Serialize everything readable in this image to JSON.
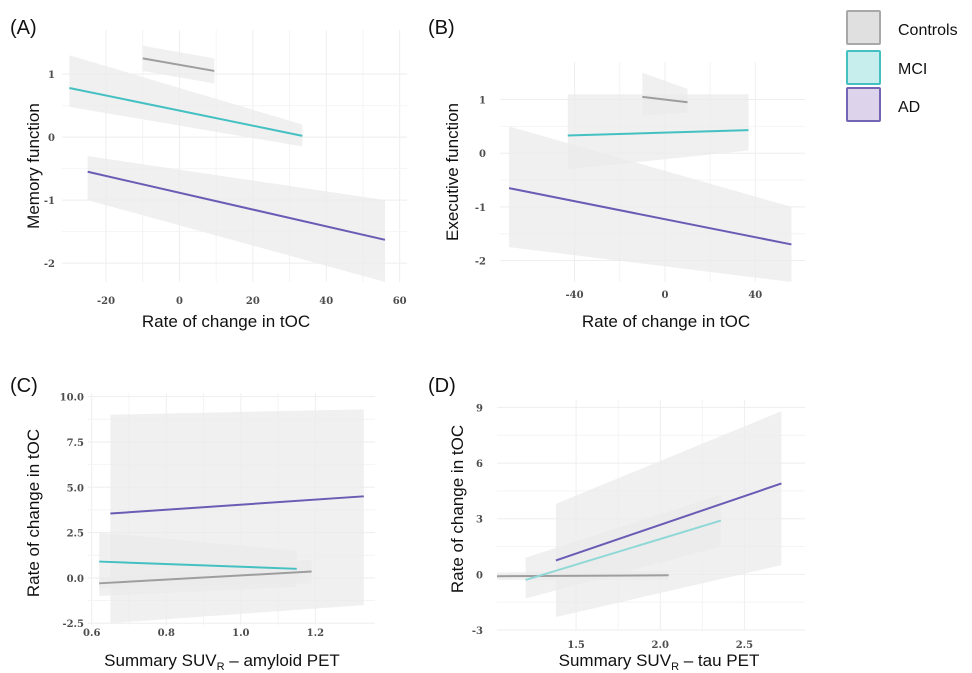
{
  "legend": {
    "items": [
      {
        "label": "Controls",
        "fill": "#e0e0e0",
        "stroke": "#a8a8a8"
      },
      {
        "label": "MCI",
        "fill": "#c7eeec",
        "stroke": "#45c0c2"
      },
      {
        "label": "AD",
        "fill": "#ddd3ea",
        "stroke": "#7464b4"
      }
    ]
  },
  "colors": {
    "Controls": "#9e9e9e",
    "MCI": "#45c0c2",
    "MCI_light": "#8fd8d6",
    "AD": "#6b5bb5",
    "band": "#ebebeb",
    "grid": "#eeeeee"
  },
  "chart_data": [
    {
      "panel": "(A)",
      "type": "line",
      "xlabel": "Rate of change in tOC",
      "ylabel": "Memory function",
      "xlim": [
        -32,
        62
      ],
      "ylim": [
        -2.3,
        1.7
      ],
      "xticks": [
        -20,
        0,
        20,
        40,
        60
      ],
      "xtick_labels": [
        "-20",
        "0",
        "20",
        "40",
        "60"
      ],
      "yticks": [
        -2,
        -1,
        0,
        1
      ],
      "ytick_labels": [
        "-2",
        "-1",
        "0",
        "1"
      ],
      "grid": true,
      "series": [
        {
          "name": "Controls",
          "x": [
            -10,
            9.5
          ],
          "y": [
            1.25,
            1.05
          ],
          "band_lo": [
            1.05,
            0.85
          ],
          "band_hi": [
            1.45,
            1.25
          ]
        },
        {
          "name": "MCI",
          "x": [
            -30,
            33.5
          ],
          "y": [
            0.78,
            0.02
          ],
          "band_lo": [
            0.48,
            -0.15
          ],
          "band_hi": [
            1.3,
            0.2
          ]
        },
        {
          "name": "AD",
          "x": [
            -25,
            56
          ],
          "y": [
            -0.55,
            -1.63
          ],
          "band_lo": [
            -1.0,
            -2.3
          ],
          "band_hi": [
            -0.3,
            -1.0
          ]
        }
      ]
    },
    {
      "panel": "(B)",
      "type": "line",
      "xlabel": "Rate of change in tOC",
      "ylabel": "Executive function",
      "xlim": [
        -73,
        62
      ],
      "ylim": [
        -2.4,
        1.7
      ],
      "xticks": [
        -40,
        0,
        40
      ],
      "xtick_labels": [
        "-40",
        "0",
        "40"
      ],
      "yticks": [
        -2,
        -1,
        0,
        1
      ],
      "ytick_labels": [
        "-2",
        "-1",
        "0",
        "1"
      ],
      "grid": true,
      "series": [
        {
          "name": "Controls",
          "x": [
            -10,
            10
          ],
          "y": [
            1.05,
            0.95
          ],
          "band_lo": [
            0.7,
            0.75
          ],
          "band_hi": [
            1.5,
            1.2
          ]
        },
        {
          "name": "MCI",
          "x": [
            -43,
            37
          ],
          "y": [
            0.33,
            0.43
          ],
          "band_lo": [
            -0.3,
            0.05
          ],
          "band_hi": [
            1.1,
            1.1
          ]
        },
        {
          "name": "AD",
          "x": [
            -69,
            56
          ],
          "y": [
            -0.65,
            -1.7
          ],
          "band_lo": [
            -1.75,
            -2.4
          ],
          "band_hi": [
            0.5,
            -1.0
          ]
        }
      ]
    },
    {
      "panel": "(C)",
      "type": "line",
      "xlabel": "Summary SUV",
      "xlabel_sub": "R",
      "xlabel_suffix": " – amyloid PET",
      "ylabel": "Rate of change in tOC",
      "xlim": [
        0.59,
        1.36
      ],
      "ylim": [
        -2.6,
        10.2
      ],
      "xticks": [
        0.6,
        0.8,
        1.0,
        1.2
      ],
      "xtick_labels": [
        "0.6",
        "0.8",
        "1.0",
        "1.2"
      ],
      "yticks": [
        -2.5,
        0.0,
        2.5,
        5.0,
        7.5,
        10.0
      ],
      "ytick_labels": [
        "-2.5",
        "0.0",
        "2.5",
        "5.0",
        "7.5",
        "10.0"
      ],
      "grid": true,
      "series": [
        {
          "name": "Controls",
          "x": [
            0.62,
            1.19
          ],
          "y": [
            -0.3,
            0.35
          ],
          "band_lo": [
            -0.6,
            -0.3
          ],
          "band_hi": [
            0.0,
            1.0
          ]
        },
        {
          "name": "MCI",
          "x": [
            0.62,
            1.15
          ],
          "y": [
            0.9,
            0.5
          ],
          "band_lo": [
            -1.0,
            -0.5
          ],
          "band_hi": [
            2.5,
            1.5
          ]
        },
        {
          "name": "AD",
          "x": [
            0.65,
            1.33
          ],
          "y": [
            3.55,
            4.5
          ],
          "band_lo": [
            -2.5,
            -1.5
          ],
          "band_hi": [
            9.0,
            9.3
          ]
        }
      ]
    },
    {
      "panel": "(D)",
      "type": "line",
      "xlabel": "Summary SUV",
      "xlabel_sub": "R",
      "xlabel_suffix": " – tau PET",
      "ylabel": "Rate of change in tOC",
      "xlim": [
        1.03,
        2.86
      ],
      "ylim": [
        -3.0,
        9.4
      ],
      "xticks": [
        1.5,
        2.0,
        2.5
      ],
      "xtick_labels": [
        "1.5",
        "2.0",
        "2.5"
      ],
      "yticks": [
        -3,
        0,
        3,
        6,
        9
      ],
      "ytick_labels": [
        "-3",
        "0",
        "3",
        "6",
        "9"
      ],
      "grid": true,
      "series": [
        {
          "name": "Controls",
          "x": [
            1.03,
            2.05
          ],
          "y": [
            -0.1,
            -0.05
          ],
          "band_lo": [
            -0.3,
            -0.3
          ],
          "band_hi": [
            0.1,
            0.2
          ]
        },
        {
          "name": "MCI",
          "x": [
            1.2,
            2.36
          ],
          "y": [
            -0.3,
            2.9
          ],
          "band_lo": [
            -1.3,
            1.5
          ],
          "band_hi": [
            0.9,
            4.3
          ]
        },
        {
          "name": "AD",
          "x": [
            1.38,
            2.72
          ],
          "y": [
            0.75,
            4.9
          ],
          "band_lo": [
            -2.3,
            0.5
          ],
          "band_hi": [
            3.8,
            8.8
          ]
        }
      ]
    }
  ]
}
